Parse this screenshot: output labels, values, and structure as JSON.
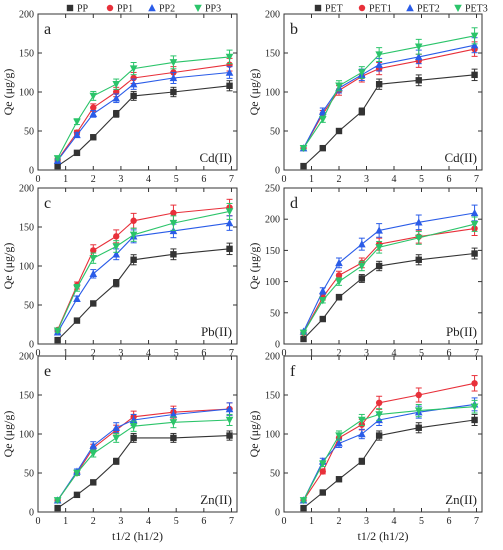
{
  "colors": {
    "axis": "#333333",
    "s0": "#333333",
    "s1": "#e8303a",
    "s2": "#2a5ce8",
    "s3": "#2bc46a"
  },
  "chart_data": [
    {
      "type": "line",
      "panel": "a",
      "metal": "Cd(II)",
      "xlabel": "t1/2 (h1/2)",
      "ylabel": "Qe (μg/g)",
      "xlim": [
        0,
        7.2
      ],
      "ylim": [
        0,
        200
      ],
      "xticks": [
        "0",
        "1",
        "2",
        "3",
        "4",
        "5",
        "6",
        "7"
      ],
      "yticks": [
        "0",
        "50",
        "100",
        "150",
        "200"
      ],
      "x": [
        0.71,
        1.41,
        2.0,
        2.83,
        3.46,
        4.9,
        6.93
      ],
      "series": [
        {
          "name": "PP",
          "marker": "square",
          "values": [
            5,
            22,
            42,
            72,
            95,
            100,
            108
          ]
        },
        {
          "name": "PP1",
          "marker": "circle",
          "values": [
            13,
            48,
            80,
            100,
            118,
            125,
            135
          ]
        },
        {
          "name": "PP2",
          "marker": "triangle",
          "values": [
            12,
            45,
            72,
            92,
            110,
            118,
            125
          ]
        },
        {
          "name": "PP3",
          "marker": "triangle-down",
          "values": [
            15,
            62,
            95,
            110,
            130,
            138,
            145
          ]
        }
      ]
    },
    {
      "type": "line",
      "panel": "b",
      "metal": "Cd(II)",
      "xlabel": "t1/2 (h1/2)",
      "ylabel": "Qe (μg/g)",
      "xlim": [
        0,
        7.2
      ],
      "ylim": [
        0,
        200
      ],
      "xticks": [
        "0",
        "1",
        "2",
        "3",
        "4",
        "5",
        "6",
        "7"
      ],
      "yticks": [
        "0",
        "50",
        "100",
        "150",
        "200"
      ],
      "x": [
        0.71,
        1.41,
        2.0,
        2.83,
        3.46,
        4.9,
        6.93
      ],
      "series": [
        {
          "name": "PET",
          "marker": "square",
          "values": [
            5,
            28,
            50,
            75,
            110,
            115,
            122
          ]
        },
        {
          "name": "PET1",
          "marker": "circle",
          "values": [
            28,
            72,
            102,
            120,
            130,
            140,
            155
          ]
        },
        {
          "name": "PET2",
          "marker": "triangle",
          "values": [
            28,
            75,
            105,
            122,
            135,
            145,
            160
          ]
        },
        {
          "name": "PET3",
          "marker": "triangle-down",
          "values": [
            28,
            65,
            108,
            125,
            148,
            158,
            172
          ]
        }
      ]
    },
    {
      "type": "line",
      "panel": "c",
      "metal": "Pb(II)",
      "xlabel": "t1/2 (h1/2)",
      "ylabel": "Qe (μg/g)",
      "xlim": [
        0,
        7.2
      ],
      "ylim": [
        0,
        200
      ],
      "xticks": [
        "0",
        "1",
        "2",
        "3",
        "4",
        "5",
        "6",
        "7"
      ],
      "yticks": [
        "0",
        "50",
        "100",
        "150",
        "200"
      ],
      "x": [
        0.71,
        1.41,
        2.0,
        2.83,
        3.46,
        4.9,
        6.93
      ],
      "series": [
        {
          "name": "PP",
          "marker": "square",
          "values": [
            5,
            30,
            52,
            78,
            108,
            115,
            122
          ]
        },
        {
          "name": "PP1",
          "marker": "circle",
          "values": [
            18,
            75,
            120,
            138,
            158,
            168,
            175
          ]
        },
        {
          "name": "PP2",
          "marker": "triangle",
          "values": [
            15,
            58,
            90,
            115,
            138,
            145,
            155
          ]
        },
        {
          "name": "PP3",
          "marker": "triangle-down",
          "values": [
            17,
            72,
            110,
            125,
            140,
            155,
            170
          ]
        }
      ]
    },
    {
      "type": "line",
      "panel": "d",
      "metal": "Pb(II)",
      "xlabel": "t1/2 (h1/2)",
      "ylabel": "Qe (μg/g)",
      "xlim": [
        0,
        7.2
      ],
      "ylim": [
        0,
        250
      ],
      "xticks": [
        "0",
        "1",
        "2",
        "3",
        "4",
        "5",
        "6",
        "7"
      ],
      "yticks": [
        "0",
        "50",
        "100",
        "150",
        "200",
        "250"
      ],
      "x": [
        0.71,
        1.41,
        2.0,
        2.83,
        3.46,
        4.9,
        6.93
      ],
      "series": [
        {
          "name": "PET",
          "marker": "square",
          "values": [
            8,
            40,
            75,
            105,
            125,
            135,
            145
          ]
        },
        {
          "name": "PET1",
          "marker": "circle",
          "values": [
            18,
            75,
            110,
            130,
            160,
            172,
            185
          ]
        },
        {
          "name": "PET2",
          "marker": "triangle",
          "values": [
            20,
            85,
            130,
            160,
            182,
            195,
            210
          ]
        },
        {
          "name": "PET3",
          "marker": "triangle-down",
          "values": [
            18,
            70,
            100,
            125,
            155,
            170,
            192
          ]
        }
      ]
    },
    {
      "type": "line",
      "panel": "e",
      "metal": "Zn(II)",
      "xlabel": "t1/2 (h1/2)",
      "ylabel": "Qe (μg/g)",
      "xlim": [
        0,
        7.2
      ],
      "ylim": [
        0,
        200
      ],
      "xticks": [
        "0",
        "1",
        "2",
        "3",
        "4",
        "5",
        "6",
        "7"
      ],
      "yticks": [
        "0",
        "50",
        "100",
        "150",
        "200"
      ],
      "x": [
        0.71,
        1.41,
        2.0,
        2.83,
        3.46,
        4.9,
        6.93
      ],
      "series": [
        {
          "name": "PP",
          "marker": "square",
          "values": [
            5,
            22,
            38,
            65,
            95,
            95,
            98
          ]
        },
        {
          "name": "PP1",
          "marker": "circle",
          "values": [
            15,
            50,
            82,
            105,
            122,
            128,
            132
          ]
        },
        {
          "name": "PP2",
          "marker": "triangle",
          "values": [
            15,
            52,
            85,
            108,
            118,
            125,
            132
          ]
        },
        {
          "name": "PP3",
          "marker": "triangle-down",
          "values": [
            15,
            50,
            75,
            95,
            110,
            115,
            118
          ]
        }
      ]
    },
    {
      "type": "line",
      "panel": "f",
      "metal": "Zn(II)",
      "xlabel": "t1/2 (h1/2)",
      "ylabel": "Qe (μg/g)",
      "xlim": [
        0,
        7.2
      ],
      "ylim": [
        0,
        200
      ],
      "xticks": [
        "0",
        "1",
        "2",
        "3",
        "4",
        "5",
        "6",
        "7"
      ],
      "yticks": [
        "0",
        "50",
        "100",
        "150",
        "200"
      ],
      "x": [
        0.71,
        1.41,
        2.0,
        2.83,
        3.46,
        4.9,
        6.93
      ],
      "series": [
        {
          "name": "PET",
          "marker": "square",
          "values": [
            5,
            25,
            42,
            65,
            98,
            108,
            118
          ]
        },
        {
          "name": "PET1",
          "marker": "circle",
          "values": [
            15,
            52,
            95,
            112,
            140,
            150,
            165
          ]
        },
        {
          "name": "PET2",
          "marker": "triangle",
          "values": [
            15,
            65,
            88,
            100,
            118,
            128,
            138
          ]
        },
        {
          "name": "PET3",
          "marker": "triangle-down",
          "values": [
            15,
            62,
            98,
            118,
            125,
            130,
            135
          ]
        }
      ]
    }
  ]
}
